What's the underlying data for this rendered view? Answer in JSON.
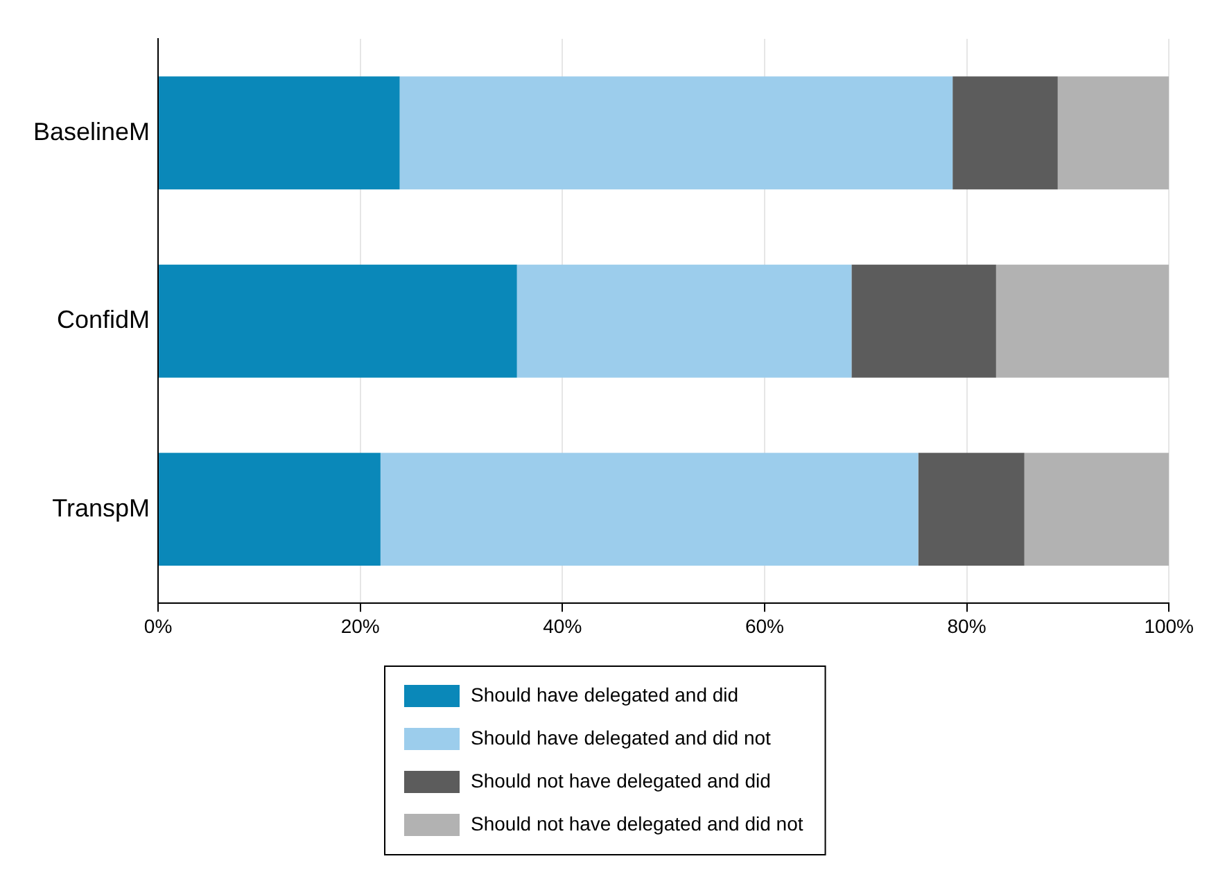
{
  "chart_data": {
    "type": "bar",
    "orientation": "horizontal",
    "stacked": true,
    "categories": [
      "BaselineM",
      "ConfidM",
      "TranspM"
    ],
    "series": [
      {
        "name": "Should have delegated and did",
        "color": "#0a88b9",
        "values": [
          23.9,
          35.5,
          22.0
        ]
      },
      {
        "name": "Should have delegated and did not",
        "color": "#9ccdec",
        "values": [
          54.7,
          33.1,
          53.2
        ]
      },
      {
        "name": "Should not have delegated and did",
        "color": "#5c5c5c",
        "values": [
          10.4,
          14.3,
          10.5
        ]
      },
      {
        "name": "Should not have delegated and did not",
        "color": "#b2b2b2",
        "values": [
          11.0,
          17.1,
          14.3
        ]
      }
    ],
    "xlim": [
      0,
      100
    ],
    "xticks": [
      {
        "value": 0,
        "label": "0%"
      },
      {
        "value": 20,
        "label": "20%"
      },
      {
        "value": 40,
        "label": "40%"
      },
      {
        "value": 60,
        "label": "60%"
      },
      {
        "value": 80,
        "label": "80%"
      },
      {
        "value": 100,
        "label": "100%"
      }
    ],
    "grid": "x",
    "legend": "bottom"
  }
}
